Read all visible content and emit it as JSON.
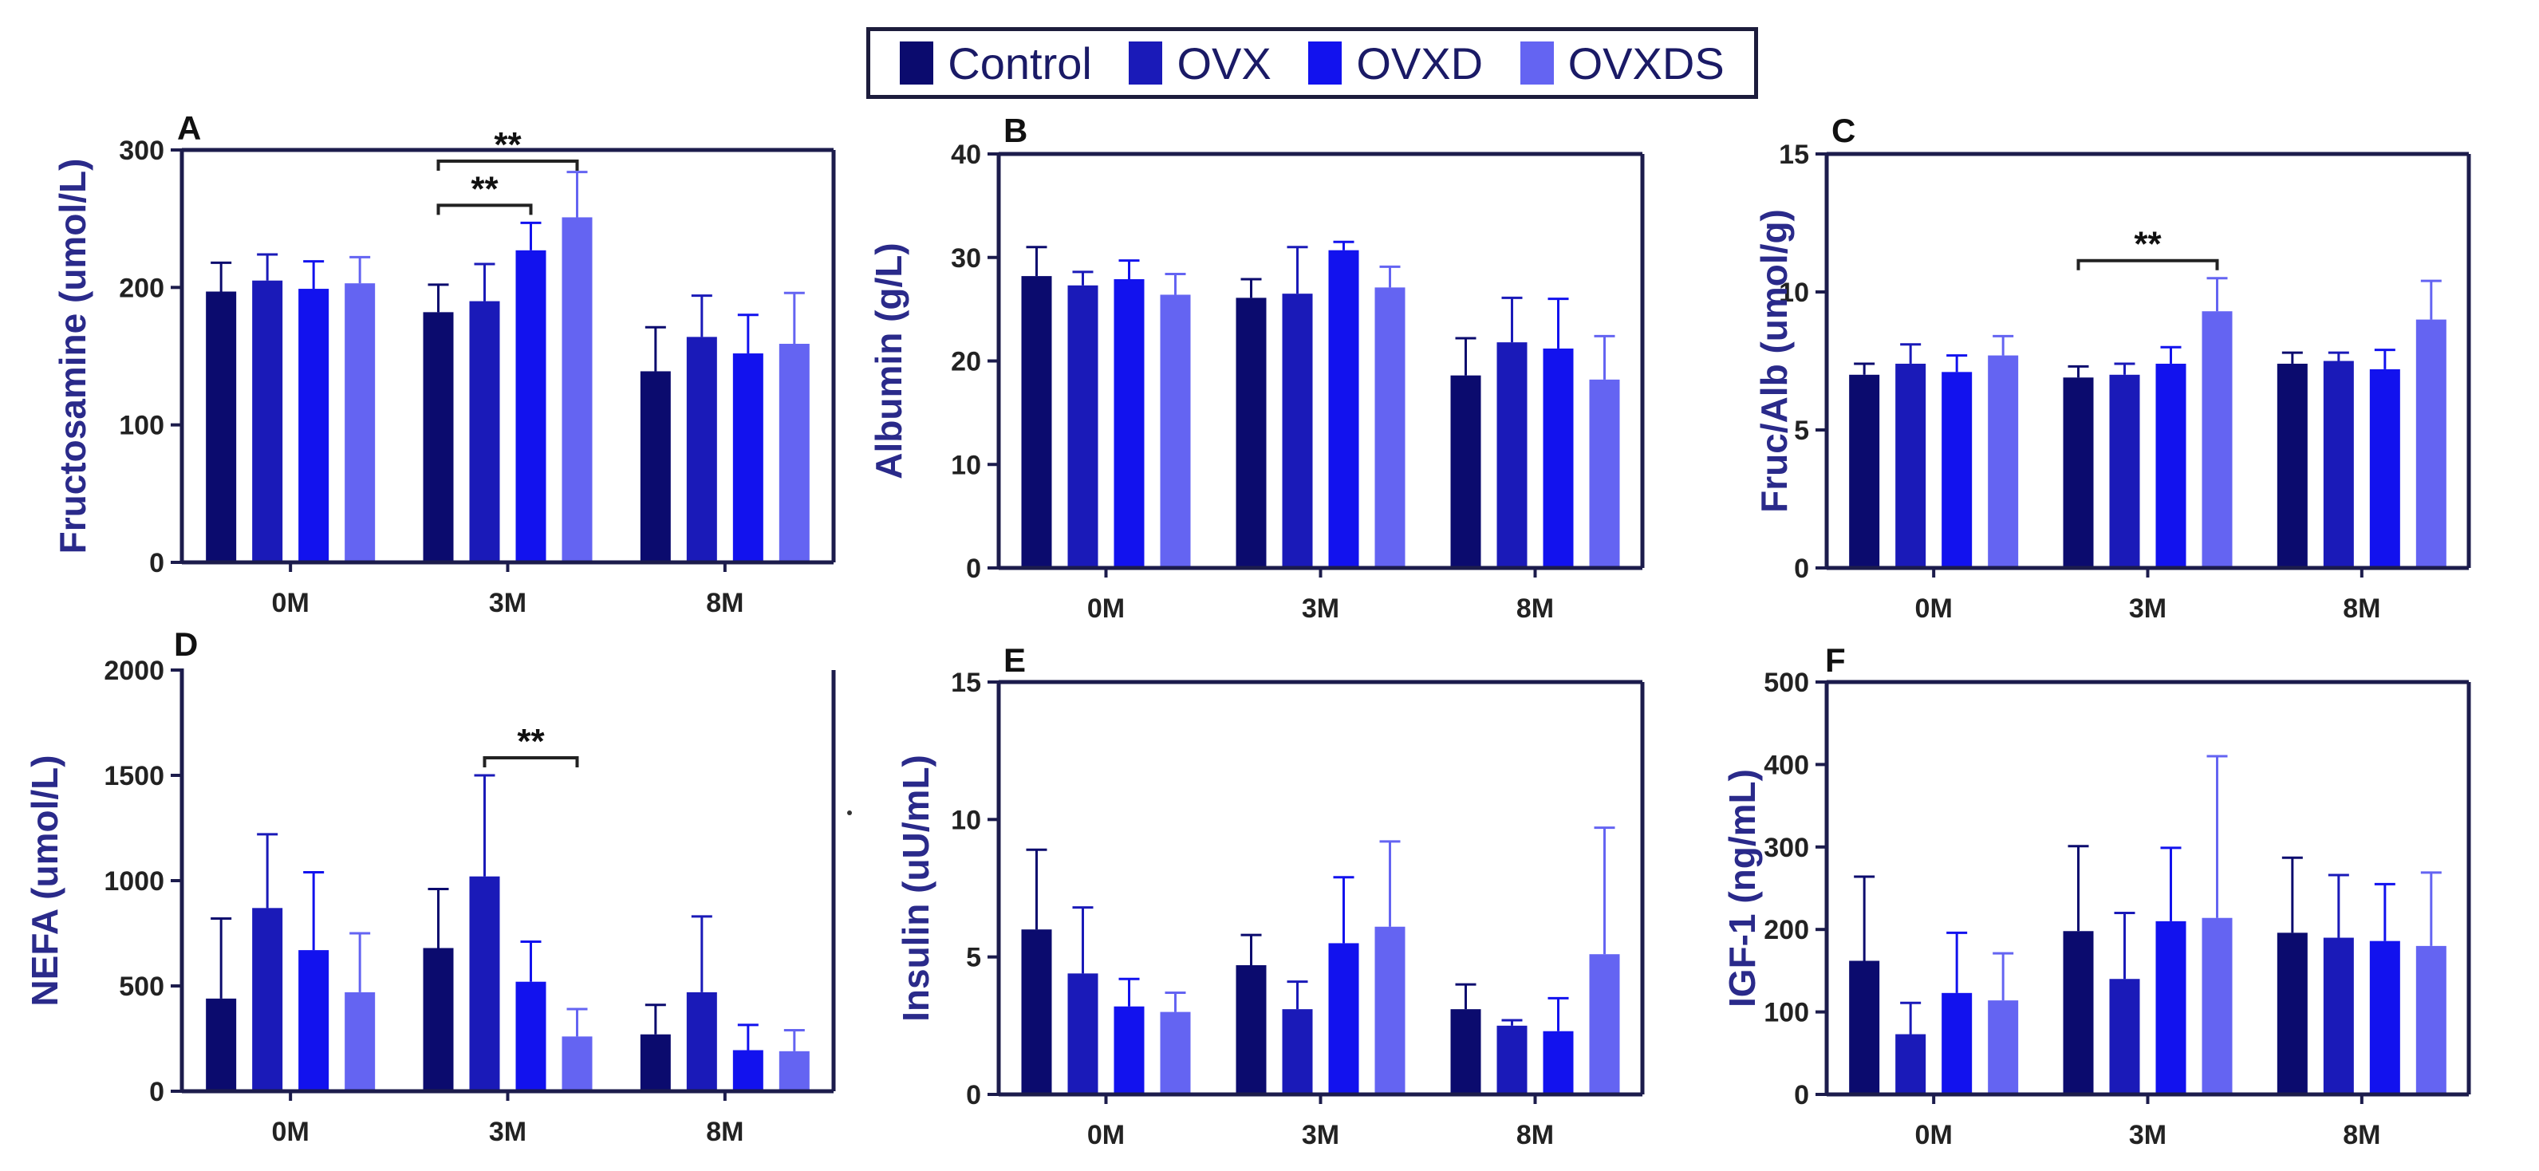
{
  "legend": {
    "items": [
      {
        "label": "Control",
        "color": "#0b0b6e"
      },
      {
        "label": "OVX",
        "color": "#1a1ab8"
      },
      {
        "label": "OVXD",
        "color": "#1212ee"
      },
      {
        "label": "OVXDS",
        "color": "#6464f2"
      }
    ]
  },
  "chart_data": [
    {
      "type": "bar",
      "panel": "A",
      "title": "",
      "xlabel": "",
      "ylabel": "Fructosamine (umol/L)",
      "categories": [
        "0M",
        "3M",
        "8M"
      ],
      "ylim": [
        0,
        300
      ],
      "yticks": [
        0,
        100,
        200,
        300
      ],
      "series": [
        {
          "name": "Control",
          "values": [
            197,
            182,
            139
          ],
          "errors": [
            21,
            20,
            32
          ]
        },
        {
          "name": "OVX",
          "values": [
            205,
            190,
            164
          ],
          "errors": [
            19,
            27,
            30
          ]
        },
        {
          "name": "OVXD",
          "values": [
            199,
            227,
            152
          ],
          "errors": [
            20,
            20,
            28
          ]
        },
        {
          "name": "OVXDS",
          "values": [
            203,
            251,
            159
          ],
          "errors": [
            19,
            33,
            37
          ]
        }
      ],
      "significance": [
        {
          "label": "**",
          "category": "3M",
          "from": "Control",
          "to": "OVXD"
        },
        {
          "label": "**",
          "category": "3M",
          "from": "Control",
          "to": "OVXDS"
        }
      ]
    },
    {
      "type": "bar",
      "panel": "B",
      "title": "",
      "xlabel": "",
      "ylabel": "Albumin (g/L)",
      "categories": [
        "0M",
        "3M",
        "8M"
      ],
      "ylim": [
        0,
        40
      ],
      "yticks": [
        0,
        10,
        20,
        30,
        40
      ],
      "series": [
        {
          "name": "Control",
          "values": [
            28.2,
            26.1,
            18.6
          ],
          "errors": [
            2.8,
            1.8,
            3.6
          ]
        },
        {
          "name": "OVX",
          "values": [
            27.3,
            26.5,
            21.8
          ],
          "errors": [
            1.3,
            4.5,
            4.3
          ]
        },
        {
          "name": "OVXD",
          "values": [
            27.9,
            30.7,
            21.2
          ],
          "errors": [
            1.8,
            0.8,
            4.8
          ]
        },
        {
          "name": "OVXDS",
          "values": [
            26.4,
            27.1,
            18.2
          ],
          "errors": [
            2.0,
            2.0,
            4.2
          ]
        }
      ],
      "significance": []
    },
    {
      "type": "bar",
      "panel": "C",
      "title": "",
      "xlabel": "",
      "ylabel": "Fruc/Alb (umol/g)",
      "categories": [
        "0M",
        "3M",
        "8M"
      ],
      "ylim": [
        0,
        15
      ],
      "yticks": [
        0,
        5,
        10,
        15
      ],
      "series": [
        {
          "name": "Control",
          "values": [
            7.0,
            6.9,
            7.4
          ],
          "errors": [
            0.4,
            0.4,
            0.4
          ]
        },
        {
          "name": "OVX",
          "values": [
            7.4,
            7.0,
            7.5
          ],
          "errors": [
            0.7,
            0.4,
            0.3
          ]
        },
        {
          "name": "OVXD",
          "values": [
            7.1,
            7.4,
            7.2
          ],
          "errors": [
            0.6,
            0.6,
            0.7
          ]
        },
        {
          "name": "OVXDS",
          "values": [
            7.7,
            9.3,
            9.0
          ],
          "errors": [
            0.7,
            1.2,
            1.4
          ]
        }
      ],
      "significance": [
        {
          "label": "**",
          "category": "3M",
          "from": "Control",
          "to": "OVXDS"
        }
      ]
    },
    {
      "type": "bar",
      "panel": "D",
      "title": "",
      "xlabel": "",
      "ylabel": "NEFA (umol/L)",
      "categories": [
        "0M",
        "3M",
        "8M"
      ],
      "ylim": [
        0,
        2000
      ],
      "yticks": [
        0,
        500,
        1000,
        1500,
        2000
      ],
      "series": [
        {
          "name": "Control",
          "values": [
            440,
            680,
            270
          ],
          "errors": [
            380,
            280,
            140
          ]
        },
        {
          "name": "OVX",
          "values": [
            870,
            1020,
            470
          ],
          "errors": [
            350,
            480,
            360
          ]
        },
        {
          "name": "OVXD",
          "values": [
            670,
            520,
            195
          ],
          "errors": [
            370,
            190,
            120
          ]
        },
        {
          "name": "OVXDS",
          "values": [
            470,
            260,
            190
          ],
          "errors": [
            280,
            130,
            100
          ]
        }
      ],
      "significance": [
        {
          "label": "**",
          "category": "3M",
          "from": "OVX",
          "to": "OVXDS"
        }
      ]
    },
    {
      "type": "bar",
      "panel": "E",
      "title": "",
      "xlabel": "",
      "ylabel": "Insulin (uU/mL)",
      "categories": [
        "0M",
        "3M",
        "8M"
      ],
      "ylim": [
        0,
        15
      ],
      "yticks": [
        0,
        5,
        10,
        15
      ],
      "series": [
        {
          "name": "Control",
          "values": [
            6.0,
            4.7,
            3.1
          ],
          "errors": [
            2.9,
            1.1,
            0.9
          ]
        },
        {
          "name": "OVX",
          "values": [
            4.4,
            3.1,
            2.5
          ],
          "errors": [
            2.4,
            1.0,
            0.2
          ]
        },
        {
          "name": "OVXD",
          "values": [
            3.2,
            5.5,
            2.3
          ],
          "errors": [
            1.0,
            2.4,
            1.2
          ]
        },
        {
          "name": "OVXDS",
          "values": [
            3.0,
            6.1,
            5.1
          ],
          "errors": [
            0.7,
            3.1,
            4.6
          ]
        }
      ],
      "significance": []
    },
    {
      "type": "bar",
      "panel": "F",
      "title": "",
      "xlabel": "",
      "ylabel": "IGF-1 (ng/mL)",
      "categories": [
        "0M",
        "3M",
        "8M"
      ],
      "ylim": [
        0,
        500
      ],
      "yticks": [
        0,
        100,
        200,
        300,
        400,
        500
      ],
      "series": [
        {
          "name": "Control",
          "values": [
            162,
            198,
            196
          ],
          "errors": [
            102,
            103,
            91
          ]
        },
        {
          "name": "OVX",
          "values": [
            73,
            140,
            190
          ],
          "errors": [
            38,
            80,
            76
          ]
        },
        {
          "name": "OVXD",
          "values": [
            123,
            210,
            186
          ],
          "errors": [
            73,
            89,
            69
          ]
        },
        {
          "name": "OVXDS",
          "values": [
            114,
            214,
            180
          ],
          "errors": [
            57,
            196,
            89
          ]
        }
      ],
      "significance": []
    }
  ]
}
